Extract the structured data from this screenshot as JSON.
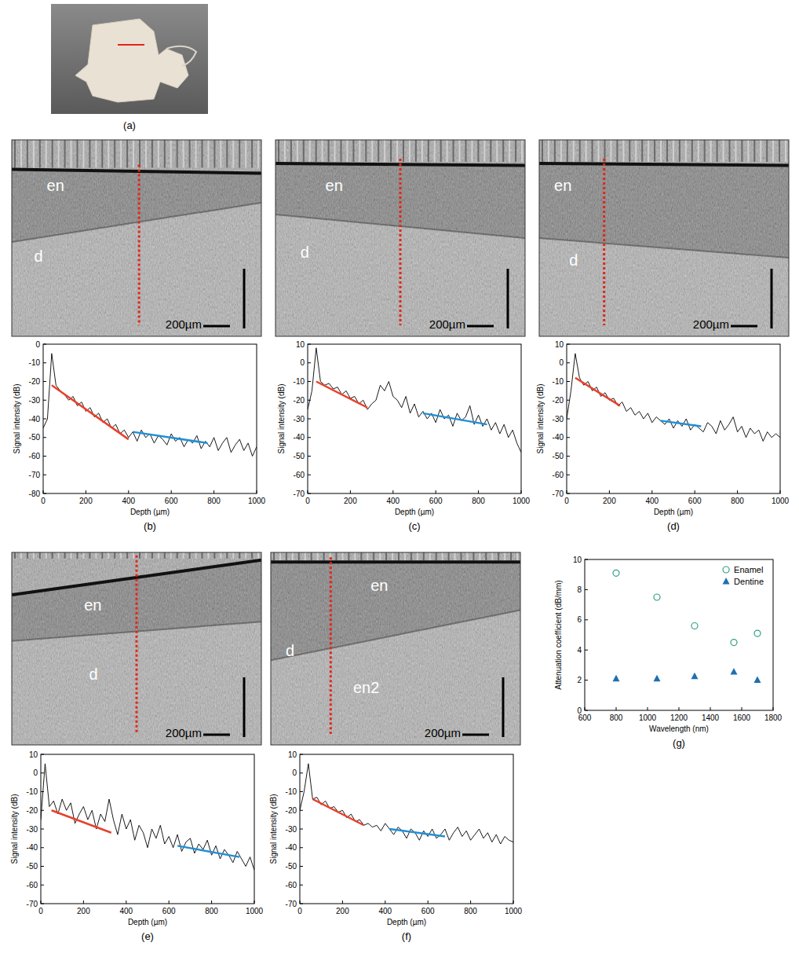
{
  "photo": {
    "caption": "(a)"
  },
  "oct_images": [
    {
      "labels": [
        "en",
        "d"
      ],
      "scale_bar": "200µm"
    },
    {
      "labels": [
        "en",
        "d"
      ],
      "scale_bar": "200µm"
    },
    {
      "labels": [
        "en",
        "d"
      ],
      "scale_bar": "200µm"
    },
    {
      "labels": [
        "en",
        "d"
      ],
      "scale_bar": "200µm"
    },
    {
      "labels": [
        "en",
        "d",
        "en2"
      ],
      "scale_bar": "200µm"
    }
  ],
  "chart_data": [
    {
      "type": "line",
      "title": "(b)",
      "x_label": "Depth (µm)",
      "y_label": "Signal intensity (dB)",
      "grid": false,
      "xlim": [
        0,
        1000
      ],
      "xticks": [
        0,
        200,
        400,
        600,
        800,
        1000
      ],
      "ylim": [
        -80,
        0
      ],
      "yticks": [
        -80,
        -70,
        -60,
        -50,
        -40,
        -30,
        -20,
        -10,
        0
      ],
      "x": [
        0,
        20,
        40,
        60,
        80,
        100,
        120,
        140,
        160,
        180,
        200,
        220,
        240,
        260,
        280,
        300,
        320,
        340,
        360,
        380,
        400,
        420,
        440,
        460,
        480,
        500,
        520,
        540,
        560,
        580,
        600,
        620,
        640,
        660,
        680,
        700,
        720,
        740,
        760,
        780,
        800,
        820,
        840,
        860,
        880,
        900,
        920,
        940,
        960,
        980,
        1000
      ],
      "series": [
        {
          "color": "#000000",
          "line_style": "solid",
          "values": [
            -45,
            -40,
            -5,
            -22,
            -25,
            -27,
            -30,
            -28,
            -33,
            -31,
            -36,
            -34,
            -39,
            -37,
            -42,
            -40,
            -45,
            -43,
            -48,
            -46,
            -50,
            -47,
            -52,
            -46,
            -50,
            -48,
            -53,
            -49,
            -51,
            -54,
            -48,
            -52,
            -50,
            -55,
            -51,
            -53,
            -49,
            -56,
            -52,
            -55,
            -50,
            -57,
            -53,
            -50,
            -58,
            -54,
            -51,
            -57,
            -53,
            -60,
            -55
          ]
        },
        {
          "color": "#e8412c",
          "line_style": "solid",
          "x": [
            40,
            400
          ],
          "values": [
            -22,
            -51
          ]
        },
        {
          "color": "#1f8fd6",
          "line_style": "solid",
          "x": [
            420,
            770
          ],
          "values": [
            -47,
            -53
          ]
        }
      ]
    },
    {
      "type": "line",
      "title": "(c)",
      "x_label": "Depth (µm)",
      "y_label": "Signal intensity (dB)",
      "grid": false,
      "xlim": [
        0,
        1000
      ],
      "xticks": [
        0,
        200,
        400,
        600,
        800,
        1000
      ],
      "ylim": [
        -70,
        10
      ],
      "yticks": [
        -70,
        -60,
        -50,
        -40,
        -30,
        -20,
        -10,
        0,
        10
      ],
      "x": [
        0,
        20,
        40,
        60,
        80,
        100,
        120,
        140,
        160,
        180,
        200,
        220,
        240,
        260,
        280,
        300,
        320,
        340,
        360,
        380,
        400,
        420,
        440,
        460,
        480,
        500,
        520,
        540,
        560,
        580,
        600,
        620,
        640,
        660,
        680,
        700,
        720,
        740,
        760,
        780,
        800,
        820,
        840,
        860,
        880,
        900,
        920,
        940,
        960,
        980,
        1000
      ],
      "series": [
        {
          "color": "#000000",
          "line_style": "solid",
          "values": [
            -25,
            -15,
            8,
            -10,
            -12,
            -11,
            -14,
            -13,
            -17,
            -15,
            -19,
            -18,
            -22,
            -20,
            -25,
            -22,
            -20,
            -12,
            -15,
            -10,
            -18,
            -20,
            -24,
            -18,
            -27,
            -22,
            -29,
            -26,
            -30,
            -27,
            -32,
            -25,
            -30,
            -28,
            -34,
            -27,
            -31,
            -29,
            -23,
            -33,
            -28,
            -34,
            -30,
            -36,
            -32,
            -38,
            -33,
            -40,
            -36,
            -43,
            -48
          ]
        },
        {
          "color": "#e8412c",
          "line_style": "solid",
          "x": [
            40,
            280
          ],
          "values": [
            -10,
            -24
          ]
        },
        {
          "color": "#1f8fd6",
          "line_style": "solid",
          "x": [
            540,
            840
          ],
          "values": [
            -27,
            -33
          ]
        }
      ]
    },
    {
      "type": "line",
      "title": "(d)",
      "x_label": "Depth (µm)",
      "y_label": "Signal intensity (dB)",
      "grid": false,
      "xlim": [
        0,
        1000
      ],
      "xticks": [
        0,
        200,
        400,
        600,
        800,
        1000
      ],
      "ylim": [
        -70,
        10
      ],
      "yticks": [
        -70,
        -60,
        -50,
        -40,
        -30,
        -20,
        -10,
        0,
        10
      ],
      "x": [
        0,
        20,
        40,
        60,
        80,
        100,
        120,
        140,
        160,
        180,
        200,
        220,
        240,
        260,
        280,
        300,
        320,
        340,
        360,
        380,
        400,
        420,
        440,
        460,
        480,
        500,
        520,
        540,
        560,
        580,
        600,
        620,
        640,
        660,
        680,
        700,
        720,
        740,
        760,
        780,
        800,
        820,
        840,
        860,
        880,
        900,
        920,
        940,
        960,
        980,
        1000
      ],
      "series": [
        {
          "color": "#000000",
          "line_style": "solid",
          "values": [
            -30,
            -15,
            5,
            -8,
            -12,
            -10,
            -15,
            -13,
            -18,
            -16,
            -20,
            -19,
            -23,
            -21,
            -26,
            -24,
            -28,
            -26,
            -30,
            -27,
            -32,
            -29,
            -31,
            -33,
            -30,
            -35,
            -31,
            -34,
            -30,
            -36,
            -33,
            -35,
            -37,
            -32,
            -34,
            -38,
            -31,
            -36,
            -33,
            -29,
            -37,
            -34,
            -40,
            -35,
            -38,
            -36,
            -42,
            -37,
            -40,
            -38,
            -40
          ]
        },
        {
          "color": "#e8412c",
          "line_style": "solid",
          "x": [
            40,
            250
          ],
          "values": [
            -8,
            -23
          ]
        },
        {
          "color": "#1f8fd6",
          "line_style": "solid",
          "x": [
            440,
            630
          ],
          "values": [
            -31,
            -34
          ]
        }
      ]
    },
    {
      "type": "line",
      "title": "(e)",
      "x_label": "Depth (µm)",
      "y_label": "Signal intensity (dB)",
      "grid": false,
      "xlim": [
        0,
        1000
      ],
      "xticks": [
        0,
        200,
        400,
        600,
        800,
        1000
      ],
      "ylim": [
        -70,
        10
      ],
      "yticks": [
        -70,
        -60,
        -50,
        -40,
        -30,
        -20,
        -10,
        0,
        10
      ],
      "x": [
        0,
        20,
        40,
        60,
        80,
        100,
        120,
        140,
        160,
        180,
        200,
        220,
        240,
        260,
        280,
        300,
        320,
        340,
        360,
        380,
        400,
        420,
        440,
        460,
        480,
        500,
        520,
        540,
        560,
        580,
        600,
        620,
        640,
        660,
        680,
        700,
        720,
        740,
        760,
        780,
        800,
        820,
        840,
        860,
        880,
        900,
        920,
        940,
        960,
        980,
        1000
      ],
      "series": [
        {
          "color": "#000000",
          "line_style": "solid",
          "values": [
            -25,
            5,
            -18,
            -15,
            -22,
            -14,
            -20,
            -16,
            -27,
            -22,
            -18,
            -25,
            -20,
            -30,
            -22,
            -26,
            -14,
            -25,
            -33,
            -22,
            -30,
            -25,
            -36,
            -28,
            -32,
            -40,
            -30,
            -35,
            -28,
            -38,
            -34,
            -40,
            -33,
            -42,
            -37,
            -35,
            -43,
            -38,
            -41,
            -36,
            -44,
            -39,
            -46,
            -41,
            -44,
            -48,
            -42,
            -46,
            -50,
            -45,
            -52
          ]
        },
        {
          "color": "#e8412c",
          "line_style": "solid",
          "x": [
            50,
            330
          ],
          "values": [
            -20,
            -32
          ]
        },
        {
          "color": "#1f8fd6",
          "line_style": "solid",
          "x": [
            640,
            930
          ],
          "values": [
            -39,
            -45
          ]
        }
      ]
    },
    {
      "type": "line",
      "title": "(f)",
      "x_label": "Depth (µm)",
      "y_label": "Signal intensity (dB)",
      "grid": false,
      "xlim": [
        0,
        1000
      ],
      "xticks": [
        0,
        200,
        400,
        600,
        800,
        1000
      ],
      "ylim": [
        -70,
        10
      ],
      "yticks": [
        -70,
        -60,
        -50,
        -40,
        -30,
        -20,
        -10,
        0,
        10
      ],
      "x": [
        0,
        20,
        40,
        60,
        80,
        100,
        120,
        140,
        160,
        180,
        200,
        220,
        240,
        260,
        280,
        300,
        320,
        340,
        360,
        380,
        400,
        420,
        440,
        460,
        480,
        500,
        520,
        540,
        560,
        580,
        600,
        620,
        640,
        660,
        680,
        700,
        720,
        740,
        760,
        780,
        800,
        820,
        840,
        860,
        880,
        900,
        920,
        940,
        960,
        980,
        1000
      ],
      "series": [
        {
          "color": "#000000",
          "line_style": "solid",
          "values": [
            -20,
            -10,
            5,
            -14,
            -13,
            -17,
            -15,
            -19,
            -18,
            -21,
            -20,
            -24,
            -22,
            -26,
            -25,
            -28,
            -27,
            -29,
            -28,
            -31,
            -27,
            -30,
            -33,
            -29,
            -31,
            -35,
            -30,
            -32,
            -36,
            -31,
            -34,
            -30,
            -35,
            -33,
            -30,
            -36,
            -32,
            -29,
            -34,
            -31,
            -36,
            -33,
            -30,
            -35,
            -32,
            -37,
            -33,
            -38,
            -34,
            -36,
            -37
          ]
        },
        {
          "color": "#e8412c",
          "line_style": "solid",
          "x": [
            60,
            300
          ],
          "values": [
            -14,
            -28
          ]
        },
        {
          "color": "#1f8fd6",
          "line_style": "solid",
          "x": [
            420,
            680
          ],
          "values": [
            -30,
            -34
          ]
        }
      ]
    },
    {
      "type": "scatter",
      "title": "(g)",
      "x_label": "Wavelength (nm)",
      "y_label": "Attenuation coefficient (dB/mm)",
      "grid": false,
      "legend": "top-right",
      "xlim": [
        600,
        1800
      ],
      "xticks": [
        600,
        800,
        1000,
        1200,
        1400,
        1600,
        1800
      ],
      "ylim": [
        0,
        10
      ],
      "yticks": [
        0,
        2,
        4,
        6,
        8,
        10
      ],
      "x": [
        800,
        1060,
        1300,
        1550,
        1700
      ],
      "series": [
        {
          "name": "Enamel",
          "color": "#2f9e86",
          "marker": "circle-open",
          "values": [
            9.1,
            7.5,
            5.6,
            4.5,
            5.1
          ]
        },
        {
          "name": "Dentine",
          "color": "#1f6fb0",
          "marker": "triangle",
          "values": [
            2.1,
            2.1,
            2.25,
            2.55,
            2.0
          ]
        }
      ]
    }
  ]
}
